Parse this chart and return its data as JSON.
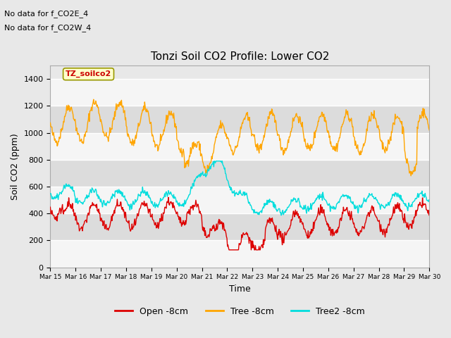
{
  "title": "Tonzi Soil CO2 Profile: Lower CO2",
  "xlabel": "Time",
  "ylabel": "Soil CO2 (ppm)",
  "ylim": [
    0,
    1500
  ],
  "yticks": [
    0,
    200,
    400,
    600,
    800,
    1000,
    1200,
    1400
  ],
  "xtick_labels": [
    "Mar 15",
    "Mar 16",
    "Mar 17",
    "Mar 18",
    "Mar 19",
    "Mar 20",
    "Mar 21",
    "Mar 22",
    "Mar 23",
    "Mar 24",
    "Mar 25",
    "Mar 26",
    "Mar 27",
    "Mar 28",
    "Mar 29",
    "Mar 30"
  ],
  "no_data_text1": "No data for f_CO2E_4",
  "no_data_text2": "No data for f_CO2W_4",
  "legend_label_box": "TZ_soilco2",
  "colors": {
    "open": "#dd0000",
    "tree": "#ffa500",
    "tree2": "#00dddd",
    "background": "#e8e8e8",
    "band_light": "#f5f5f5",
    "band_dark": "#dcdcdc"
  },
  "legend": {
    "open": "Open -8cm",
    "tree": "Tree -8cm",
    "tree2": "Tree2 -8cm"
  },
  "figsize": [
    6.4,
    4.8
  ],
  "dpi": 100
}
